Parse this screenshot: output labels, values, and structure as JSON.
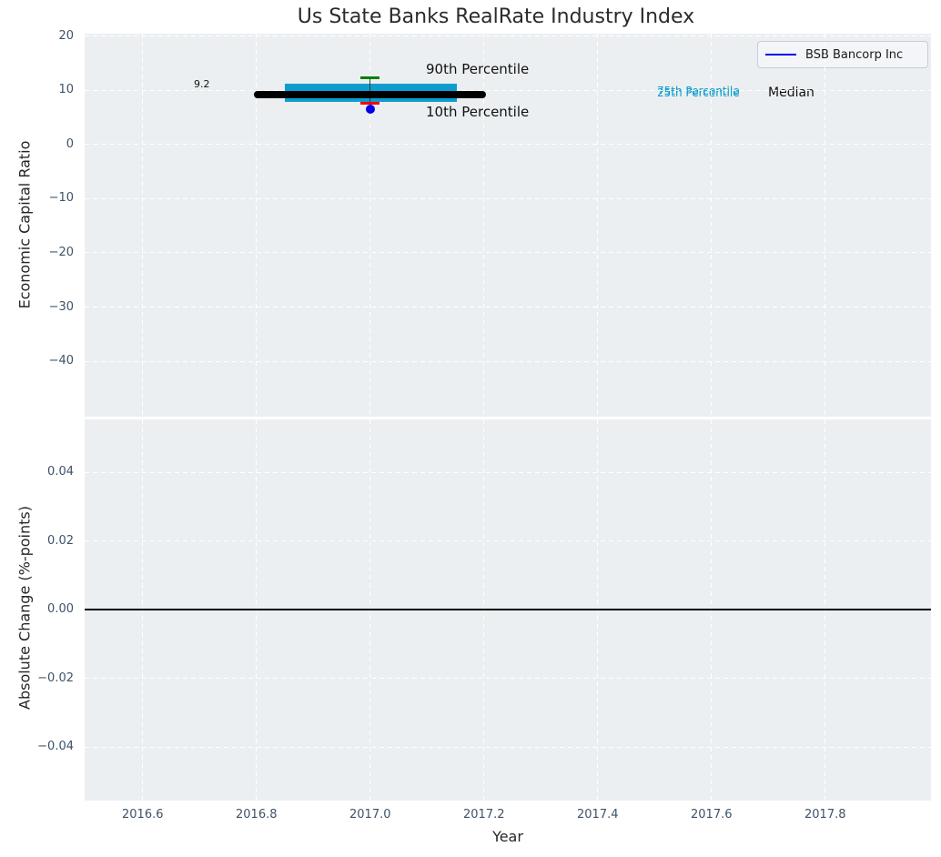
{
  "title": "Us State Banks RealRate Industry Index",
  "xlabel": "Year",
  "legend": {
    "label": "BSB Bancorp Inc",
    "line_color": "#0000e8"
  },
  "top_plot": {
    "ylabel": "Economic Capital Ratio",
    "tick_labels": [
      "20",
      "10",
      "0",
      "−10",
      "−20",
      "−30",
      "−40"
    ]
  },
  "bottom_plot": {
    "ylabel": "Absolute Change (%-points)",
    "tick_labels": [
      "0.04",
      "0.02",
      "0.00",
      "−0.02",
      "−0.04"
    ]
  },
  "x_axis": {
    "tick_labels": [
      "2016.6",
      "2016.8",
      "2017.0",
      "2017.2",
      "2017.4",
      "2017.6",
      "2017.8"
    ]
  },
  "annotations": {
    "median_value": "9.2",
    "p90": "90th Percentile",
    "p10": "10th Percentile",
    "p75": "75th Percentile",
    "p25": "25th Percentile",
    "median_word": "Median"
  },
  "chart_data": [
    {
      "type": "boxplot",
      "title": "Us State Banks RealRate Industry Index",
      "xlabel": "Year",
      "ylabel": "Economic Capital Ratio",
      "xlim": [
        2016.498,
        2017.986
      ],
      "ylim": [
        -50.25,
        20.5
      ],
      "xticks": [
        2016.6,
        2016.8,
        2017.0,
        2017.2,
        2017.4,
        2017.6,
        2017.8
      ],
      "yticks": [
        20,
        10,
        0,
        -10,
        -20,
        -30,
        -40
      ],
      "grid": true,
      "legend_position": "upper right",
      "industry_box": {
        "x_center": 2017.0,
        "p90": 12.4,
        "p75": 11.2,
        "median": 9.2,
        "p25": 7.9,
        "p10": 7.7,
        "median_label": "9.2",
        "box_left": 2016.85,
        "box_right": 2017.152,
        "median_left": 2016.796,
        "median_right": 2017.204,
        "cap_half_width": 0.017,
        "box_color": "#0d9ecf",
        "median_color": "#000000",
        "p90_cap_color": "#008000",
        "p10_cap_color": "#ff0000"
      },
      "company_series": {
        "name": "BSB Bancorp Inc",
        "points": [
          {
            "x": 2017.0,
            "y": 6.5
          }
        ],
        "color": "#0000e8"
      }
    },
    {
      "type": "line",
      "xlabel": "Year",
      "ylabel": "Absolute Change (%-points)",
      "xlim": [
        2016.498,
        2017.986
      ],
      "ylim": [
        -0.0556,
        0.0554
      ],
      "xticks": [
        2016.6,
        2016.8,
        2017.0,
        2017.2,
        2017.4,
        2017.6,
        2017.8
      ],
      "yticks": [
        0.04,
        0.02,
        0.0,
        -0.02,
        -0.04
      ],
      "grid": true,
      "series": [],
      "zero_line": 0.0
    }
  ]
}
